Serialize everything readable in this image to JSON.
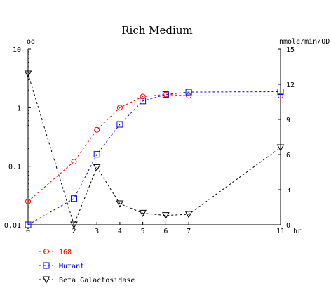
{
  "chart_data": {
    "type": "line",
    "title": "Rich Medium",
    "xlabel": "hr",
    "ylabel_left": "od",
    "ylabel_right": "nmole/min/OD",
    "x_ticks": [
      0,
      2,
      3,
      4,
      5,
      6,
      7,
      11
    ],
    "y_left_scale": "log",
    "y_left_ticks": [
      "0.01",
      "0.1",
      "1",
      "10"
    ],
    "y_left_range": [
      0.01,
      10
    ],
    "y_right_ticks": [
      "0",
      "3",
      "6",
      "9",
      "12",
      "15"
    ],
    "y_right_range": [
      0,
      15
    ],
    "x_range": [
      0,
      11
    ],
    "grid": false,
    "legend_placement": "bottom-left",
    "series": [
      {
        "name": "168",
        "axis": "left",
        "color": "#ff0000",
        "marker": "circle",
        "x": [
          0,
          2,
          3,
          4,
          5,
          6,
          7,
          11
        ],
        "y": [
          0.025,
          0.12,
          0.42,
          1.0,
          1.55,
          1.68,
          1.6,
          1.6
        ]
      },
      {
        "name": "Mutant",
        "axis": "left",
        "color": "#0000ff",
        "marker": "square",
        "x": [
          0,
          2,
          3,
          4,
          5,
          6,
          7,
          11
        ],
        "y": [
          0.01,
          0.028,
          0.16,
          0.52,
          1.3,
          1.68,
          1.85,
          1.88
        ]
      },
      {
        "name": "Beta Galactosidase",
        "axis": "right",
        "color": "#000000",
        "marker": "triangle-down",
        "x": [
          0,
          2,
          3,
          4,
          5,
          6,
          7,
          11
        ],
        "y": [
          12.9,
          0.0,
          4.9,
          1.8,
          1.0,
          0.8,
          0.9,
          6.6
        ]
      }
    ]
  }
}
